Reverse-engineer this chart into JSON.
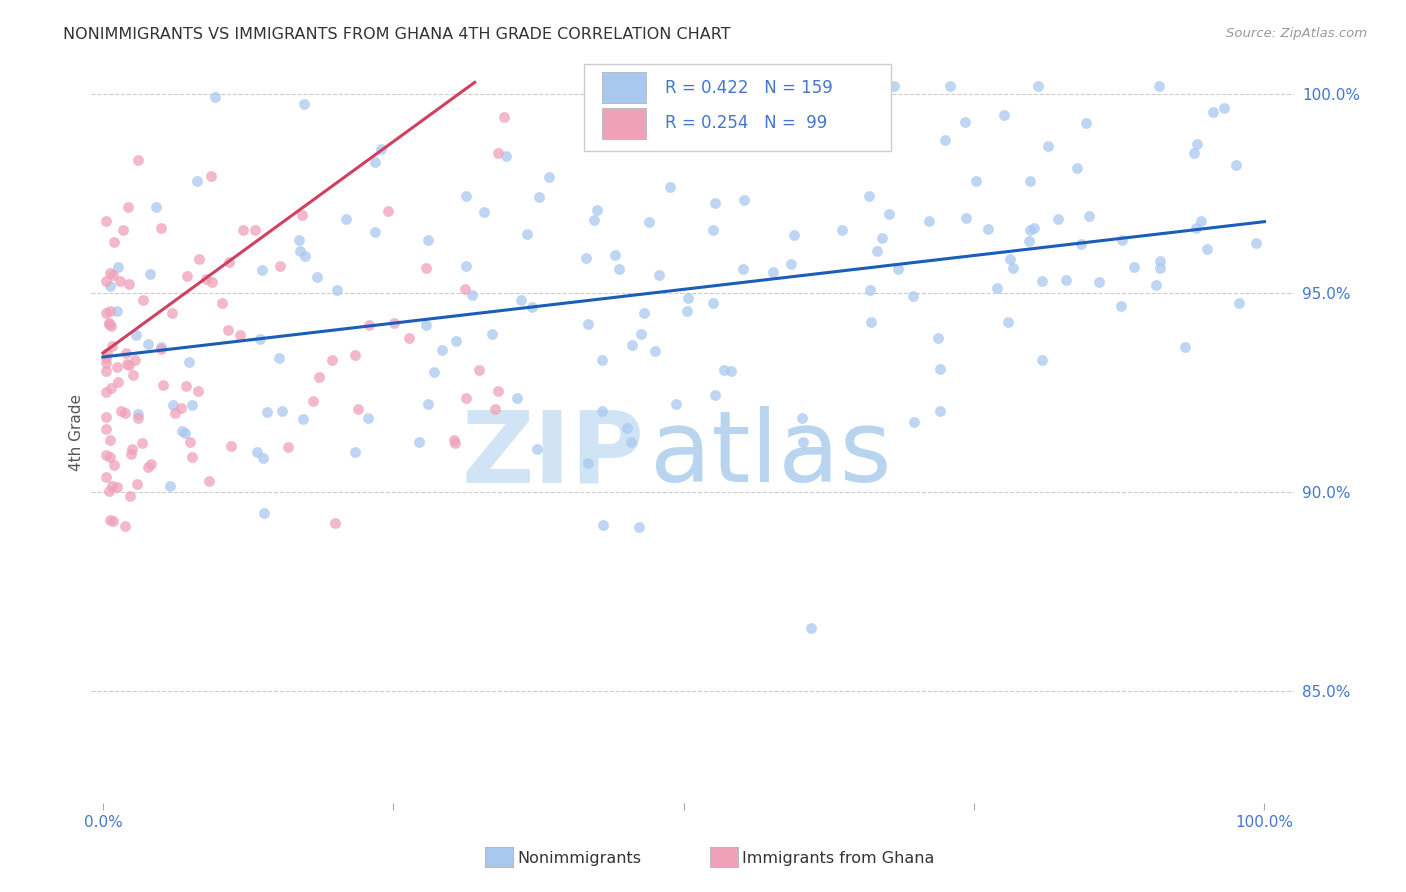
{
  "title": "NONIMMIGRANTS VS IMMIGRANTS FROM GHANA 4TH GRADE CORRELATION CHART",
  "source": "Source: ZipAtlas.com",
  "ylabel": "4th Grade",
  "blue_R": 0.422,
  "blue_N": 159,
  "pink_R": 0.254,
  "pink_N": 99,
  "blue_color": "#a8c8f0",
  "blue_line_color": "#1a5eb8",
  "pink_color": "#f0a0b8",
  "pink_line_color": "#d04060",
  "legend_label_blue": "Nonimmigrants",
  "legend_label_pink": "Immigrants from Ghana",
  "title_color": "#333333",
  "source_color": "#999999",
  "axis_color": "#4477cc",
  "ylabel_color": "#555555",
  "watermark_zip_color": "#d0e4f5",
  "watermark_atlas_color": "#b8d4ee",
  "grid_color": "#cccccc",
  "legend_box_color": "#cccccc",
  "x_ticks": [
    0.0,
    0.25,
    0.5,
    0.75,
    1.0
  ],
  "x_tick_labels": [
    "0.0%",
    "",
    "",
    "",
    "100.0%"
  ],
  "y_tick_vals": [
    0.85,
    0.9,
    0.95,
    1.0
  ],
  "y_tick_labels": [
    "85.0%",
    "90.0%",
    "95.0%",
    "100.0%"
  ],
  "xlim": [
    -0.01,
    1.025
  ],
  "ylim": [
    0.822,
    1.008
  ]
}
